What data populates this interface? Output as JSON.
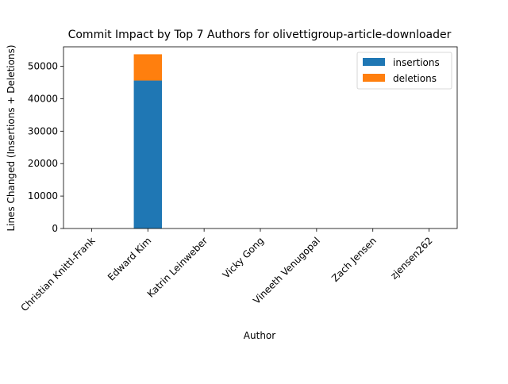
{
  "chart_data": {
    "type": "bar",
    "stacked": true,
    "title": "Commit Impact by Top 7 Authors for olivettigroup-article-downloader",
    "xlabel": "Author",
    "ylabel": "Lines Changed (Insertions + Deletions)",
    "categories": [
      "Christian Knittl-Frank",
      "Edward Kim",
      "Katrin Leinweber",
      "Vicky Gong",
      "Vineeth Venugopal",
      "Zach Jensen",
      "zjensen262"
    ],
    "series": [
      {
        "name": "insertions",
        "color": "#1f77b4",
        "values": [
          0,
          45600,
          0,
          0,
          0,
          0,
          0
        ]
      },
      {
        "name": "deletions",
        "color": "#ff7f0e",
        "values": [
          0,
          8100,
          0,
          0,
          0,
          0,
          0
        ]
      }
    ],
    "ylim": [
      0,
      56000
    ],
    "yticks": [
      0,
      10000,
      20000,
      30000,
      40000,
      50000
    ],
    "grid": false,
    "legend_position": "top-right"
  }
}
